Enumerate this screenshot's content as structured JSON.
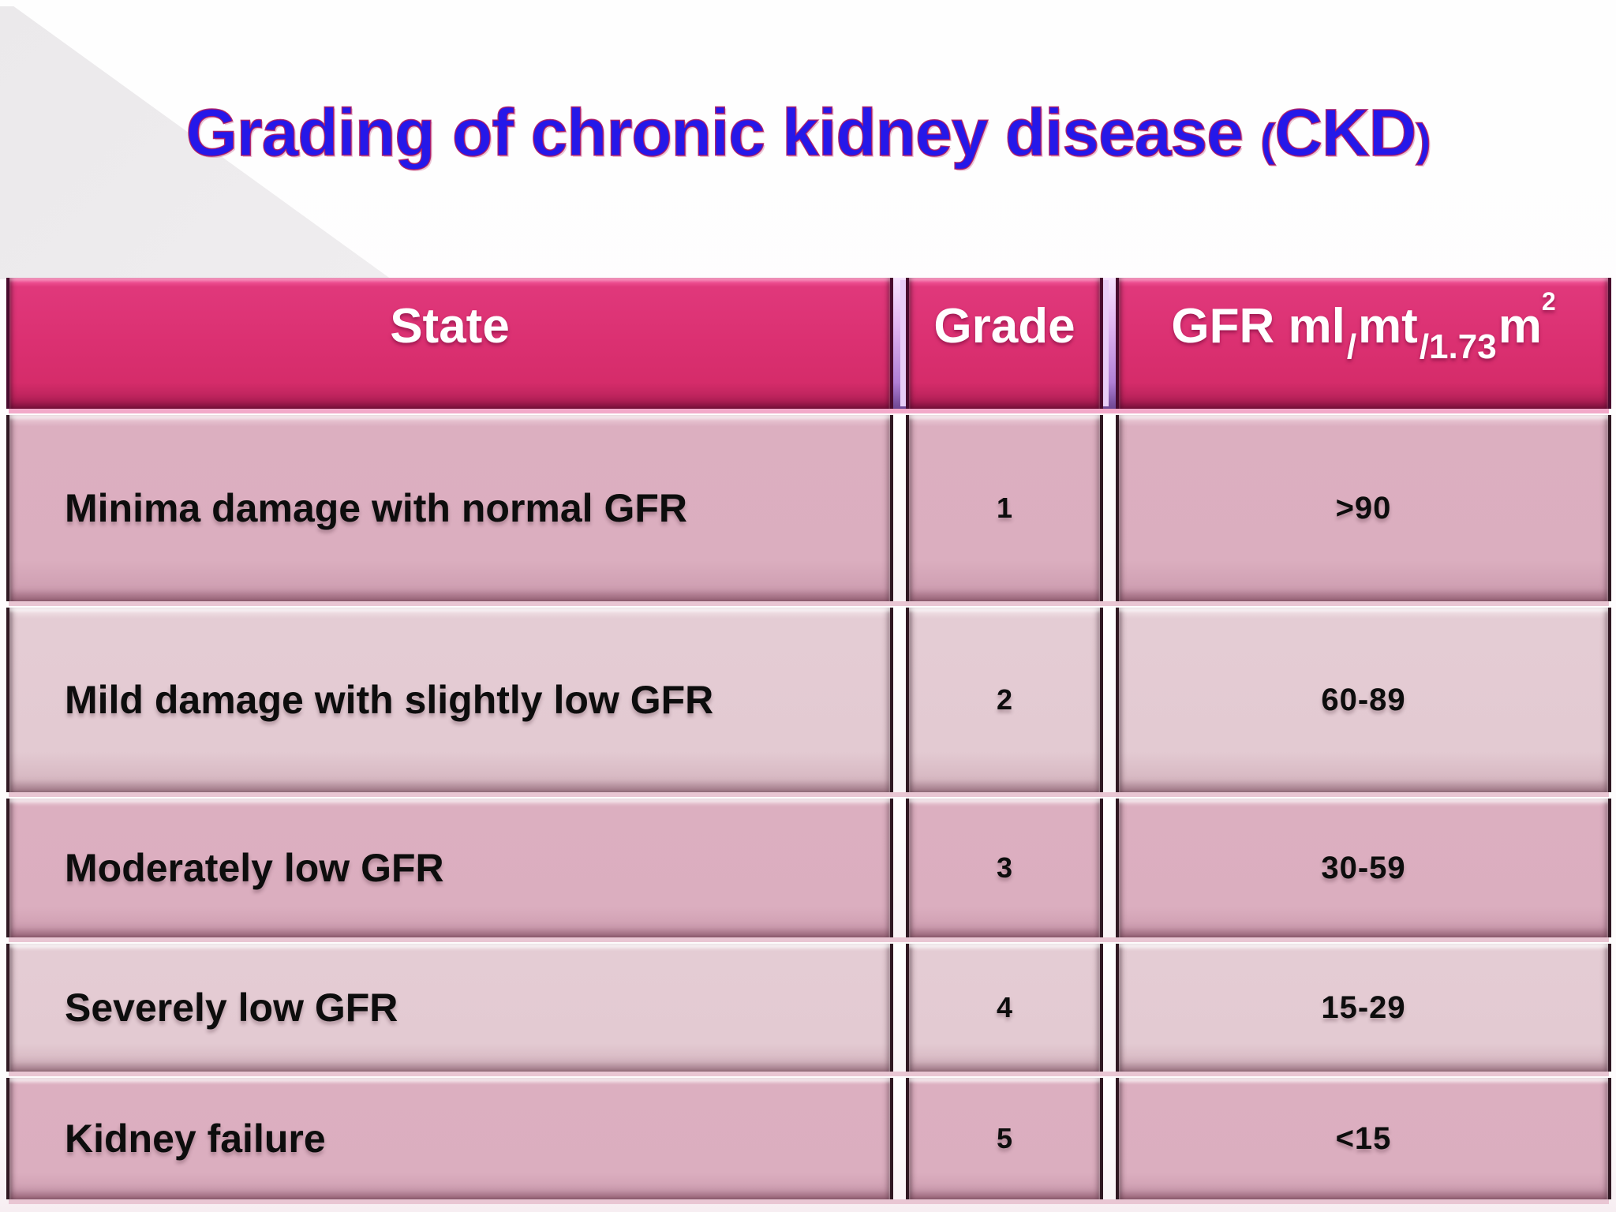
{
  "title": {
    "main": "Grading of chronic kidney disease",
    "paren_open": "(",
    "ckd": "CKD",
    "paren_close": ")"
  },
  "table": {
    "header": {
      "state": "State",
      "grade": "Grade",
      "gfr_parts": [
        "GFR ml",
        "/",
        "mt",
        "/1.73",
        "m",
        "2"
      ]
    },
    "rows": [
      {
        "state": "Minima damage with normal GFR",
        "grade": "1",
        "gfr": ">90"
      },
      {
        "state": "Mild damage with slightly low GFR",
        "grade": "2",
        "gfr": "60-89"
      },
      {
        "state": "Moderately low GFR",
        "grade": "3",
        "gfr": "30-59"
      },
      {
        "state": "Severely low GFR",
        "grade": "4",
        "gfr": "15-29"
      },
      {
        "state": "Kidney failure",
        "grade": "5",
        "gfr": "<15"
      }
    ]
  },
  "colors": {
    "title_blue": "#2518e9",
    "title_outline": "#b2165c",
    "header_pink": "#db3071",
    "row_pink": "#dbaebf",
    "row_light_pink": "#e3cad2",
    "lavender_edge": "#e8cdf7",
    "corner_gray": "#ebe9eb",
    "header_text": "#ffffff",
    "body_text": "#0d0d0d"
  }
}
